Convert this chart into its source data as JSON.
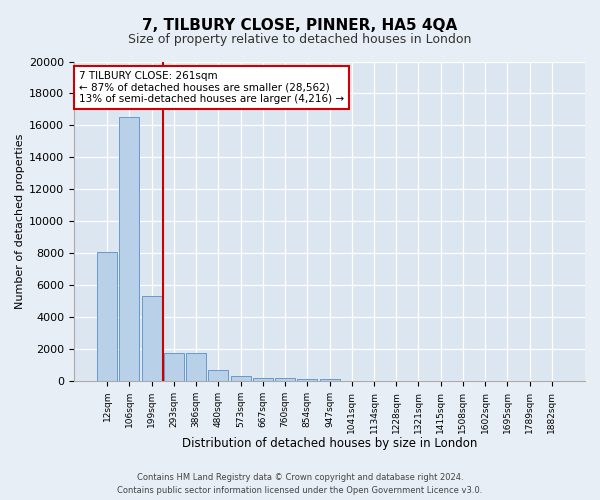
{
  "title": "7, TILBURY CLOSE, PINNER, HA5 4QA",
  "subtitle": "Size of property relative to detached houses in London",
  "xlabel": "Distribution of detached houses by size in London",
  "ylabel": "Number of detached properties",
  "categories": [
    "12sqm",
    "106sqm",
    "199sqm",
    "293sqm",
    "386sqm",
    "480sqm",
    "573sqm",
    "667sqm",
    "760sqm",
    "854sqm",
    "947sqm",
    "1041sqm",
    "1134sqm",
    "1228sqm",
    "1321sqm",
    "1415sqm",
    "1508sqm",
    "1602sqm",
    "1695sqm",
    "1789sqm",
    "1882sqm"
  ],
  "values": [
    8100,
    16500,
    5300,
    1750,
    1750,
    700,
    300,
    200,
    170,
    150,
    120,
    0,
    0,
    0,
    0,
    0,
    0,
    0,
    0,
    0,
    0
  ],
  "bar_color": "#b8d0e8",
  "bar_edge_color": "#6699cc",
  "vline_color": "#cc0000",
  "annotation_text": "7 TILBURY CLOSE: 261sqm\n← 87% of detached houses are smaller (28,562)\n13% of semi-detached houses are larger (4,216) →",
  "annotation_box_color": "#ffffff",
  "annotation_box_edge": "#cc0000",
  "axes_background": "#dce6f0",
  "fig_background": "#e8eef5",
  "footer_line1": "Contains HM Land Registry data © Crown copyright and database right 2024.",
  "footer_line2": "Contains public sector information licensed under the Open Government Licence v3.0.",
  "ylim": [
    0,
    20000
  ],
  "yticks": [
    0,
    2000,
    4000,
    6000,
    8000,
    10000,
    12000,
    14000,
    16000,
    18000,
    20000
  ],
  "vline_x_index": 2
}
